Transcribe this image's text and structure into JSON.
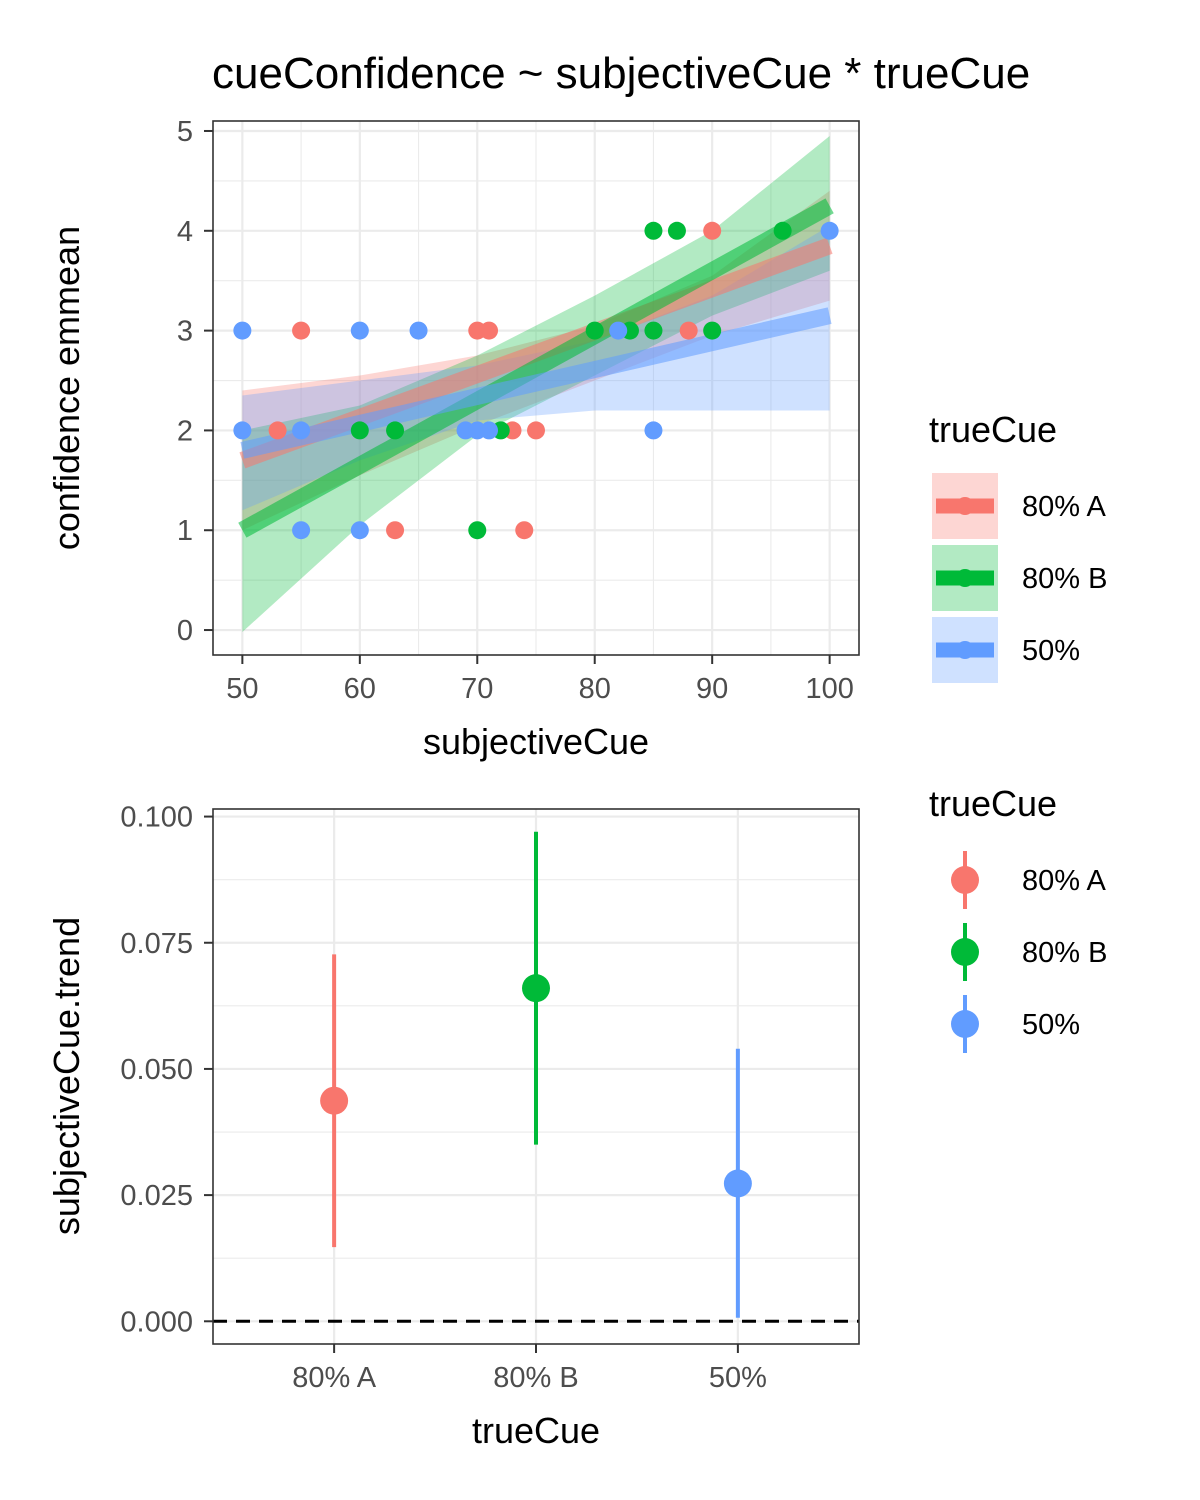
{
  "title": "cueConfidence ~ subjectiveCue * trueCue",
  "colors": {
    "80% A": "#F8766D",
    "80% B": "#00BA38",
    "50%": "#619CFF"
  },
  "chart_data": [
    {
      "type": "scatter",
      "xlabel": "subjectiveCue",
      "ylabel": "confidence emmean",
      "xlim": [
        47.5,
        102.5
      ],
      "ylim": [
        -0.25,
        5.1
      ],
      "xticks": [
        50,
        60,
        70,
        80,
        90,
        100
      ],
      "yticks": [
        0,
        1,
        2,
        3,
        4,
        5
      ],
      "grid": true,
      "legend": {
        "title": "trueCue",
        "position": "right"
      },
      "series": [
        {
          "name": "80% A",
          "color": "#F8766D",
          "points": [
            [
              53,
              2
            ],
            [
              55,
              3
            ],
            [
              63,
              1
            ],
            [
              70,
              3
            ],
            [
              71,
              3
            ],
            [
              73,
              2
            ],
            [
              74,
              1
            ],
            [
              75,
              2
            ],
            [
              88,
              3
            ],
            [
              90,
              4
            ]
          ],
          "fit": {
            "x": [
              50,
              100
            ],
            "y": [
              1.7,
              3.85
            ]
          },
          "band": {
            "x": [
              50,
              60,
              70,
              80,
              90,
              100
            ],
            "lower": [
              1.0,
              1.55,
              2.05,
              2.5,
              2.95,
              3.3
            ],
            "upper": [
              2.4,
              2.55,
              2.75,
              3.05,
              3.55,
              4.4
            ]
          }
        },
        {
          "name": "80% B",
          "color": "#00BA38",
          "points": [
            [
              60,
              2
            ],
            [
              63,
              2
            ],
            [
              70,
              1
            ],
            [
              72,
              2
            ],
            [
              80,
              3
            ],
            [
              83,
              3
            ],
            [
              85,
              3
            ],
            [
              85,
              4
            ],
            [
              87,
              4
            ],
            [
              90,
              3
            ],
            [
              96,
              4
            ]
          ],
          "fit": {
            "x": [
              50,
              100
            ],
            "y": [
              1.0,
              4.25
            ]
          },
          "band": {
            "x": [
              50,
              60,
              70,
              80,
              90,
              100
            ],
            "lower": [
              -0.02,
              1.05,
              1.95,
              2.55,
              3.15,
              3.6
            ],
            "upper": [
              2.0,
              2.25,
              2.75,
              3.35,
              4.0,
              4.95
            ]
          }
        },
        {
          "name": "50%",
          "color": "#619CFF",
          "points": [
            [
              50,
              3
            ],
            [
              50,
              2
            ],
            [
              55,
              2
            ],
            [
              55,
              1
            ],
            [
              60,
              3
            ],
            [
              60,
              1
            ],
            [
              65,
              3
            ],
            [
              69,
              2
            ],
            [
              70,
              2
            ],
            [
              71,
              2
            ],
            [
              82,
              3
            ],
            [
              85,
              2
            ],
            [
              100,
              4
            ]
          ],
          "fit": {
            "x": [
              50,
              100
            ],
            "y": [
              1.8,
              3.15
            ]
          },
          "band": {
            "x": [
              50,
              60,
              70,
              80,
              90,
              100
            ],
            "lower": [
              1.2,
              1.7,
              2.1,
              2.2,
              2.2,
              2.2
            ],
            "upper": [
              2.35,
              2.5,
              2.65,
              2.9,
              3.35,
              4.05
            ]
          }
        }
      ]
    },
    {
      "type": "scatter",
      "xlabel": "trueCue",
      "ylabel": "subjectiveCue.trend",
      "categories": [
        "80% A",
        "80% B",
        "50%"
      ],
      "ylim": [
        -0.0045,
        0.1015
      ],
      "yticks": [
        0.0,
        0.025,
        0.05,
        0.075,
        0.1
      ],
      "ytick_labels": [
        "0.000",
        "0.025",
        "0.050",
        "0.075",
        "0.100"
      ],
      "reference_line": {
        "y": 0,
        "style": "dashed"
      },
      "grid": true,
      "legend": {
        "title": "trueCue",
        "position": "right"
      },
      "series": [
        {
          "name": "80% A",
          "color": "#F8766D",
          "value": 0.0437,
          "lower": 0.0147,
          "upper": 0.0727
        },
        {
          "name": "80% B",
          "color": "#00BA38",
          "value": 0.066,
          "lower": 0.035,
          "upper": 0.097
        },
        {
          "name": "50%",
          "color": "#619CFF",
          "value": 0.0273,
          "lower": 0.0007,
          "upper": 0.054
        }
      ]
    }
  ]
}
